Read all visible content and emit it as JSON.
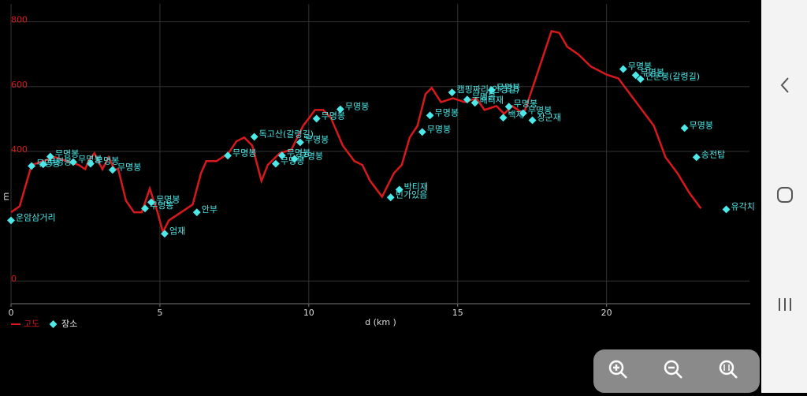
{
  "chart_data": {
    "type": "line",
    "xlabel": "d (km )",
    "ylabel": "m",
    "xlim": [
      0,
      24.8
    ],
    "ylim": [
      -70,
      855
    ],
    "xticks": [
      0,
      5,
      10,
      15,
      20
    ],
    "yticks": [
      0,
      400,
      600,
      800
    ],
    "grid": true,
    "legend": "bottom-left",
    "series": [
      {
        "name": "고도",
        "color": "#d7191c",
        "x": [
          0,
          0.29,
          0.69,
          1.08,
          1.48,
          1.88,
          2.28,
          2.49,
          2.6,
          2.8,
          3.07,
          3.28,
          3.47,
          3.6,
          3.86,
          4.13,
          4.39,
          4.66,
          4.92,
          5.1,
          5.3,
          5.71,
          6.1,
          6.38,
          6.56,
          6.9,
          7.3,
          7.57,
          7.83,
          8.1,
          8.41,
          8.62,
          9.02,
          9.42,
          9.81,
          10.21,
          10.48,
          10.74,
          11.14,
          11.53,
          11.8,
          12.06,
          12.46,
          12.86,
          13.12,
          13.39,
          13.65,
          13.92,
          14.13,
          14.44,
          14.84,
          15.24,
          15.63,
          15.9,
          16.3,
          16.56,
          16.83,
          17.22,
          17.62,
          18.15,
          18.41,
          18.68,
          19.07,
          19.47,
          20,
          20.4,
          20.79,
          21.19,
          21.59,
          21.98,
          22.38,
          22.78,
          23.17
        ],
        "values": [
          212,
          231,
          358,
          370,
          382,
          370,
          358,
          345,
          370,
          394,
          345,
          382,
          345,
          345,
          248,
          212,
          212,
          285,
          212,
          151,
          187,
          212,
          236,
          333,
          370,
          370,
          394,
          431,
          443,
          418,
          309,
          358,
          394,
          406,
          479,
          528,
          528,
          504,
          418,
          370,
          358,
          309,
          260,
          333,
          358,
          443,
          479,
          577,
          596,
          552,
          564,
          552,
          564,
          528,
          540,
          516,
          540,
          516,
          625,
          771,
          766,
          723,
          698,
          662,
          637,
          625,
          577,
          528,
          479,
          382,
          333,
          272,
          224
        ]
      },
      {
        "name": "장소",
        "color": "#4de8e8",
        "type": "scatter",
        "x": [
          0,
          0.69,
          1.08,
          1.32,
          2.09,
          2.67,
          3.41,
          4.5,
          4.71,
          5.16,
          6.24,
          7.28,
          8.17,
          8.89,
          9.1,
          9.52,
          9.71,
          10.26,
          11.06,
          12.75,
          13.04,
          13.81,
          14.07,
          14.81,
          15.32,
          15.58,
          16.14,
          16.53,
          16.72,
          17.2,
          17.51,
          20.56,
          20.98,
          21.14,
          22.62,
          23.02,
          24.02
        ],
        "values": [
          187,
          355,
          360,
          384,
          367,
          362,
          343,
          224,
          243,
          146,
          212,
          387,
          445,
          362,
          387,
          377,
          428,
          501,
          530,
          258,
          282,
          460,
          511,
          582,
          560,
          550,
          589,
          504,
          538,
          518,
          496,
          654,
          635,
          623,
          472,
          382,
          221
        ],
        "labels": [
          "운암삼거리",
          "무명봉",
          "무명봉",
          "무명봉",
          "무명봉",
          "무명봉",
          "무명봉",
          "무명봉",
          "무명봉",
          "엄재",
          "안부",
          "무명봉",
          "독고산(갈령길)",
          "무명봉",
          "무명봉",
          "무명봉",
          "무명봉",
          "무명봉",
          "무명봉",
          "빈가있음",
          "박티재",
          "무명봉",
          "무명봉",
          "캠핑짜리(안경길)",
          "무명봉",
          "배티재",
          "무명봉",
          "백재",
          "무명봉",
          "무명봉",
          "장군재",
          "무명봉",
          "무명봉",
          "민둔봉(갈령길)",
          "무명봉",
          "송전탑",
          "유각치"
        ]
      }
    ]
  }
}
